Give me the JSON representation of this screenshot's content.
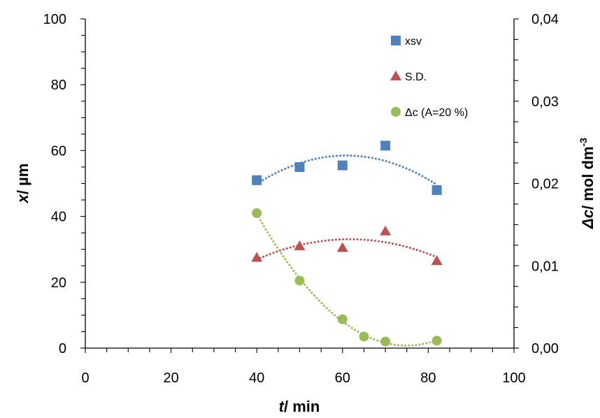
{
  "chart_data": {
    "type": "scatter",
    "x_axis": {
      "ticks": [
        "0",
        "20",
        "40",
        "60",
        "80",
        "100"
      ],
      "range": [
        0,
        100
      ],
      "title_var": "t",
      "title_rest": "/ min"
    },
    "y_left": {
      "ticks": [
        "0",
        "20",
        "40",
        "60",
        "80",
        "100"
      ],
      "range": [
        0,
        100
      ],
      "title_var": "x",
      "title_rest": "/ µm"
    },
    "y_right": {
      "ticks": [
        "0,00",
        "0,01",
        "0,02",
        "0,03",
        "0,04"
      ],
      "range": [
        0,
        0.04
      ],
      "title_var": "Δc",
      "title_rest": "/ mol dm",
      "title_sup": "-3"
    },
    "grid": false,
    "legend_position": "top-right",
    "series": [
      {
        "name": "xsv",
        "marker": "square",
        "color": "#4F81BD",
        "axis": "left",
        "x": [
          40,
          50,
          60,
          70,
          82
        ],
        "y": [
          51,
          55,
          55.5,
          61.5,
          48
        ],
        "trendline": "polynomial"
      },
      {
        "name": "S.D.",
        "marker": "triangle",
        "color": "#C0504D",
        "axis": "left",
        "x": [
          40,
          50,
          60,
          70,
          82
        ],
        "y": [
          27.5,
          31,
          30.5,
          35.5,
          26.5
        ],
        "trendline": "polynomial"
      },
      {
        "name": "Δc (A=20 %)",
        "marker": "circle",
        "color": "#9BBB59",
        "axis": "right",
        "x": [
          40,
          50,
          60,
          65,
          70,
          82
        ],
        "y": [
          0.0164,
          0.0082,
          0.0035,
          0.0014,
          0.0008,
          0.0009
        ],
        "trendline": "polynomial"
      }
    ]
  }
}
